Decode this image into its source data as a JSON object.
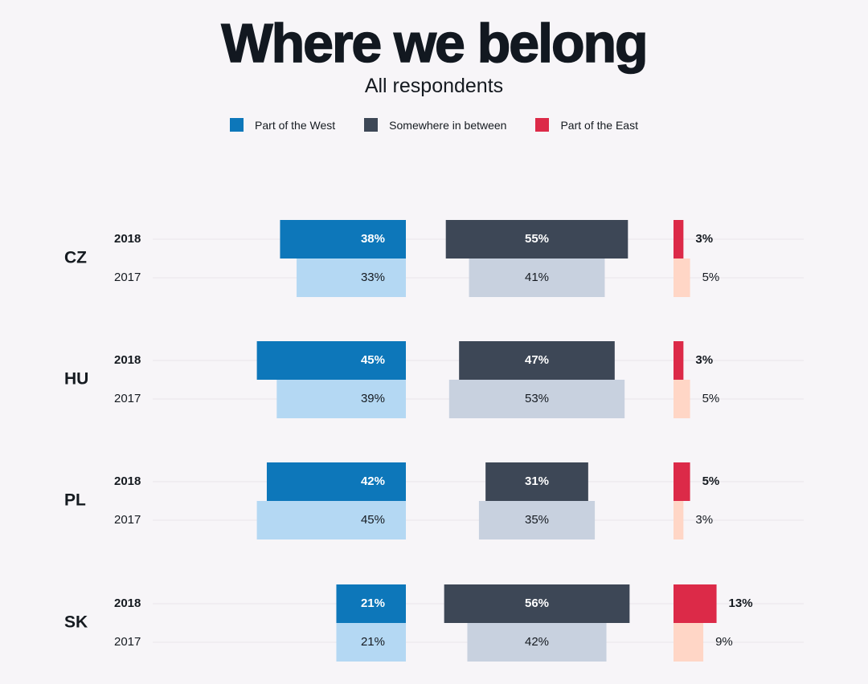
{
  "title": "Where we belong",
  "subtitle": "All respondents",
  "legend": [
    {
      "label": "Part of the West",
      "color": "#0d77ba"
    },
    {
      "label": "Somewhere in between",
      "color": "#3d4756"
    },
    {
      "label": "Part of the East",
      "color": "#dc2a48"
    }
  ],
  "colors": {
    "west2018": "#0d77ba",
    "west2017": "#b4d8f3",
    "between2018": "#3d4756",
    "between2017": "#c8d1df",
    "east2018": "#dc2a48",
    "east2017": "#ffd6c6"
  },
  "chart_data": {
    "type": "bar",
    "title": "Where we belong",
    "subtitle": "All respondents",
    "categories": [
      "CZ",
      "HU",
      "PL",
      "SK"
    ],
    "years": [
      "2018",
      "2017"
    ],
    "legend_placement": "top-center",
    "series": [
      {
        "name": "Part of the West",
        "values_2018": [
          38,
          45,
          42,
          21
        ],
        "values_2017": [
          33,
          39,
          45,
          21
        ]
      },
      {
        "name": "Somewhere in between",
        "values_2018": [
          55,
          47,
          31,
          56
        ],
        "values_2017": [
          41,
          53,
          35,
          42
        ]
      },
      {
        "name": "Part of the East",
        "values_2018": [
          3,
          3,
          5,
          13
        ],
        "values_2017": [
          5,
          5,
          3,
          9
        ]
      }
    ],
    "value_suffix": "%"
  }
}
